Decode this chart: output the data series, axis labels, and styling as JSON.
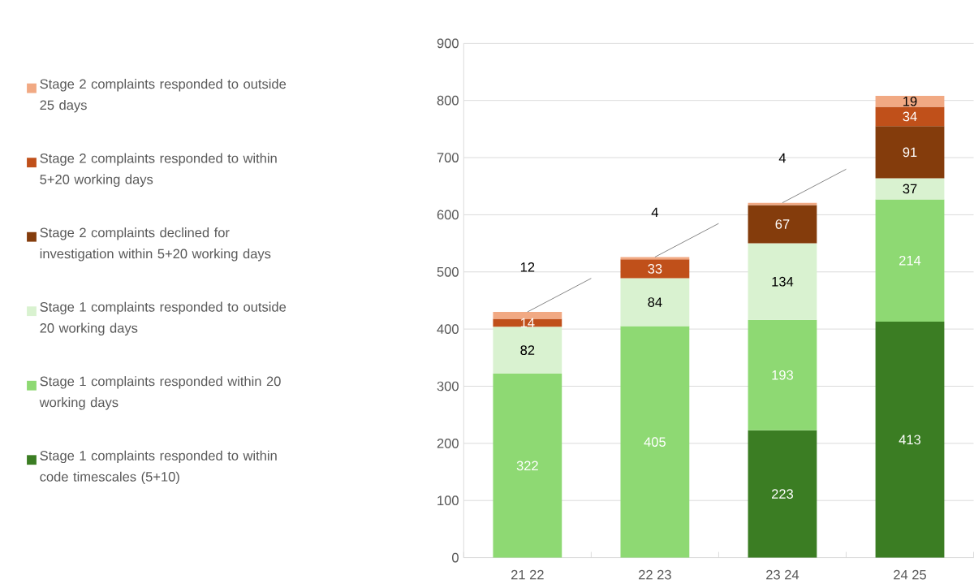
{
  "chart_data": {
    "type": "bar",
    "stacked": true,
    "categories": [
      "21 22",
      "22 23",
      "23 24",
      "24 25"
    ],
    "series": [
      {
        "name": "Stage 1 complaints responded to within code timescales (5+10)",
        "color": "#3b7d23",
        "values": [
          null,
          null,
          223,
          413
        ]
      },
      {
        "name": "Stage 1 complaints responded within 20 working days",
        "color": "#8ed973",
        "values": [
          322,
          405,
          193,
          214
        ]
      },
      {
        "name": "Stage 1 complaints responded to outside 20 working days",
        "color": "#d9f2d0",
        "values": [
          82,
          84,
          134,
          37
        ]
      },
      {
        "name": "Stage 2 complaints declined for investigation within 5+20 working days",
        "color": "#843c0c",
        "values": [
          null,
          null,
          67,
          91
        ]
      },
      {
        "name": "Stage 2 complaints responded to within 5+20 working days",
        "color": "#c0501a",
        "values": [
          14,
          33,
          null,
          34
        ]
      },
      {
        "name": "Stage 2 complaints responded to outside 25 days",
        "color": "#f1a983",
        "values": [
          12,
          4,
          4,
          19
        ]
      }
    ],
    "ylim": [
      0,
      900
    ],
    "yticks": [
      0,
      100,
      200,
      300,
      400,
      500,
      600,
      700,
      800,
      900
    ],
    "grid": "y",
    "legend": "left",
    "data_labels": true
  }
}
